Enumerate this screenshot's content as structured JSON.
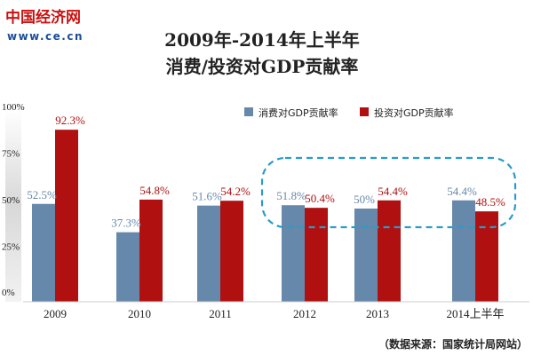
{
  "logo": {
    "name": "中国经济网",
    "url": "www.ce.cn"
  },
  "colors": {
    "consumption": "#6688aa",
    "investment": "#b01010",
    "axis_text": "#222222",
    "highlight": "#2a9cc8",
    "logo_red": "#cc1111",
    "logo_blue": "#1a4d99"
  },
  "source_note": "（数据来源：国家统计局网站）",
  "chart_data": {
    "type": "bar",
    "title": "2009年-2014年上半年",
    "subtitle": "消费/投资对GDP贡献率",
    "categories": [
      "2009",
      "2010",
      "2011",
      "2012",
      "2013",
      "2014上半年"
    ],
    "series": [
      {
        "name": "消费对GDP贡献率",
        "values": [
          52.5,
          37.3,
          51.6,
          51.8,
          50,
          54.4
        ],
        "labels": [
          "52.5%",
          "37.3%",
          "51.6%",
          "51.8%",
          "50%",
          "54.4%"
        ]
      },
      {
        "name": "投资对GDP贡献率",
        "values": [
          92.3,
          54.8,
          54.2,
          50.4,
          54.4,
          48.5
        ],
        "labels": [
          "92.3%",
          "54.8%",
          "54.2%",
          "50.4%",
          "54.4%",
          "48.5%"
        ]
      }
    ],
    "yticks": [
      0,
      25,
      50,
      75,
      100
    ],
    "ytick_labels": [
      "0%",
      "25%",
      "50%",
      "75%",
      "100%"
    ],
    "ylim": [
      0,
      100
    ],
    "grid": false,
    "legend_position": "top-right",
    "highlight_categories": [
      "2012",
      "2013",
      "2014上半年"
    ]
  }
}
